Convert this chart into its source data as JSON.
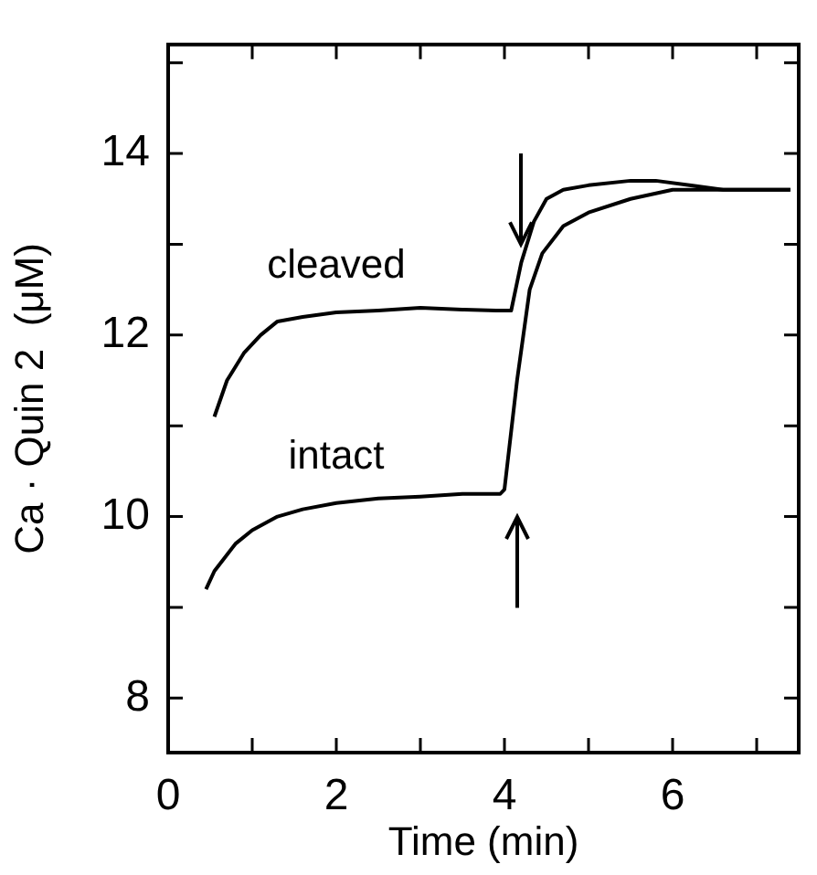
{
  "chart_data": {
    "type": "line",
    "xlabel": "Time (min)",
    "ylabel": "Ca · Quin 2  (μM)",
    "xlim": [
      0,
      7.5
    ],
    "ylim": [
      7.4,
      15.2
    ],
    "xticks": [
      0,
      {
        "value": 1,
        "label": null
      },
      2,
      {
        "value": 3,
        "label": null
      },
      4,
      {
        "value": 5,
        "label": null
      },
      6,
      {
        "value": 7,
        "label": null
      }
    ],
    "yticks": [
      8,
      {
        "value": 9,
        "label": null
      },
      10,
      {
        "value": 11,
        "label": null
      },
      12,
      {
        "value": 13,
        "label": null
      },
      14,
      {
        "value": 15,
        "label": null
      }
    ],
    "grid": false,
    "legend": false,
    "marker": "none",
    "series": [
      {
        "name": "cleaved",
        "color": "#000000",
        "x": [
          0.55,
          0.7,
          0.9,
          1.1,
          1.3,
          1.6,
          2.0,
          2.5,
          3.0,
          3.5,
          3.9,
          4.08,
          4.2,
          4.35,
          4.5,
          4.7,
          5.0,
          5.5,
          5.8,
          6.2,
          6.6,
          7.0,
          7.4
        ],
        "values": [
          11.1,
          11.5,
          11.8,
          12.0,
          12.15,
          12.2,
          12.25,
          12.27,
          12.3,
          12.28,
          12.27,
          12.27,
          12.8,
          13.25,
          13.5,
          13.6,
          13.65,
          13.7,
          13.7,
          13.65,
          13.6,
          13.6,
          13.6
        ]
      },
      {
        "name": "intact",
        "color": "#000000",
        "x": [
          0.45,
          0.55,
          0.8,
          1.0,
          1.3,
          1.6,
          2.0,
          2.5,
          3.0,
          3.5,
          3.95,
          4.0,
          4.15,
          4.3,
          4.45,
          4.7,
          5.0,
          5.5,
          6.0,
          6.5,
          7.0,
          7.4
        ],
        "values": [
          9.2,
          9.4,
          9.7,
          9.85,
          10.0,
          10.08,
          10.15,
          10.2,
          10.22,
          10.25,
          10.25,
          10.3,
          11.5,
          12.5,
          12.9,
          13.2,
          13.35,
          13.5,
          13.6,
          13.6,
          13.6,
          13.6
        ]
      }
    ]
  }
}
